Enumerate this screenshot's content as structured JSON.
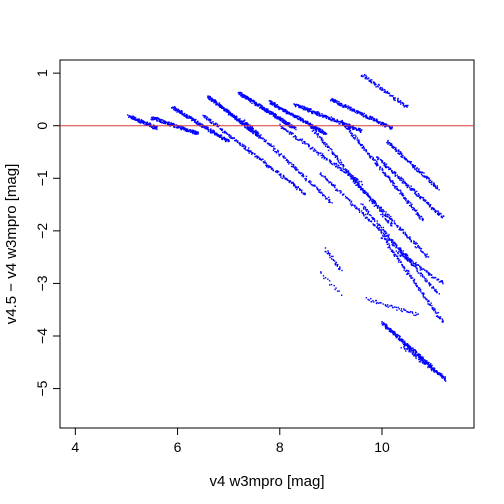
{
  "chart_data": {
    "type": "scatter",
    "xlabel": "v4 w3mpro [mag]",
    "ylabel": "v4.5 − v4 w3mpro [mag]",
    "xlim": [
      3.7,
      11.8
    ],
    "ylim": [
      -5.75,
      1.25
    ],
    "xticks": [
      4,
      6,
      8,
      10
    ],
    "yticks": [
      1,
      0,
      -1,
      -2,
      -3,
      -4,
      -5
    ],
    "xtick_labels": [
      "4",
      "6",
      "8",
      "10"
    ],
    "ytick_labels": [
      "1",
      "0",
      "−1",
      "−2",
      "−3",
      "−4",
      "−5"
    ],
    "grid": false,
    "point_color": "#0000ff",
    "reference_line": {
      "y": 0,
      "color": "#d83a3a"
    },
    "series": [
      {
        "values": [
          {
            "x": [
              5.05,
              5.6
            ],
            "y": [
              0.18,
              -0.05
            ],
            "n": 120
          },
          {
            "x": [
              5.5,
              6.4
            ],
            "y": [
              0.15,
              -0.15
            ],
            "n": 180
          },
          {
            "x": [
              5.9,
              7.0
            ],
            "y": [
              0.35,
              -0.3
            ],
            "n": 200
          },
          {
            "x": [
              6.6,
              7.6
            ],
            "y": [
              0.55,
              -0.2
            ],
            "n": 260
          },
          {
            "x": [
              7.2,
              8.3
            ],
            "y": [
              0.62,
              -0.05
            ],
            "n": 280
          },
          {
            "x": [
              7.8,
              8.9
            ],
            "y": [
              0.45,
              -0.15
            ],
            "n": 240
          },
          {
            "x": [
              8.3,
              9.6
            ],
            "y": [
              0.4,
              -0.1
            ],
            "n": 220
          },
          {
            "x": [
              9.0,
              10.2
            ],
            "y": [
              0.5,
              -0.05
            ],
            "n": 200
          },
          {
            "x": [
              9.6,
              10.5
            ],
            "y": [
              0.97,
              0.35
            ],
            "n": 90
          },
          {
            "x": [
              6.5,
              8.5
            ],
            "y": [
              0.2,
              -1.3
            ],
            "n": 220
          },
          {
            "x": [
              7.3,
              9.0
            ],
            "y": [
              0.1,
              -1.45
            ],
            "n": 160
          },
          {
            "x": [
              8.0,
              9.6
            ],
            "y": [
              0.0,
              -1.1
            ],
            "n": 150
          },
          {
            "x": [
              8.6,
              10.2
            ],
            "y": [
              0.0,
              -1.9
            ],
            "n": 180
          },
          {
            "x": [
              9.2,
              10.8
            ],
            "y": [
              0.1,
              -1.8
            ],
            "n": 200
          },
          {
            "x": [
              9.9,
              11.2
            ],
            "y": [
              -0.6,
              -1.75
            ],
            "n": 160
          },
          {
            "x": [
              10.1,
              11.1
            ],
            "y": [
              -0.3,
              -1.2
            ],
            "n": 140
          },
          {
            "x": [
              9.4,
              10.9
            ],
            "y": [
              -1.0,
              -2.5
            ],
            "n": 160
          },
          {
            "x": [
              8.8,
              10.6
            ],
            "y": [
              -0.9,
              -2.6
            ],
            "n": 150
          },
          {
            "x": [
              9.6,
              11.1
            ],
            "y": [
              -1.5,
              -3.2
            ],
            "n": 140
          },
          {
            "x": [
              10.0,
              11.2
            ],
            "y": [
              -2.1,
              -3.75
            ],
            "n": 140
          },
          {
            "x": [
              10.3,
              11.2
            ],
            "y": [
              -2.4,
              -3.0
            ],
            "n": 80
          },
          {
            "x": [
              8.9,
              9.2
            ],
            "y": [
              -2.35,
              -2.75
            ],
            "n": 30
          },
          {
            "x": [
              9.7,
              10.7
            ],
            "y": [
              -3.3,
              -3.6
            ],
            "n": 50
          },
          {
            "x": [
              10.0,
              11.25
            ],
            "y": [
              -3.75,
              -4.83
            ],
            "n": 300
          },
          {
            "x": [
              10.4,
              11.15
            ],
            "y": [
              -4.2,
              -4.75
            ],
            "n": 60
          },
          {
            "x": [
              8.8,
              9.2
            ],
            "y": [
              -2.8,
              -3.2
            ],
            "n": 15
          }
        ]
      }
    ]
  }
}
